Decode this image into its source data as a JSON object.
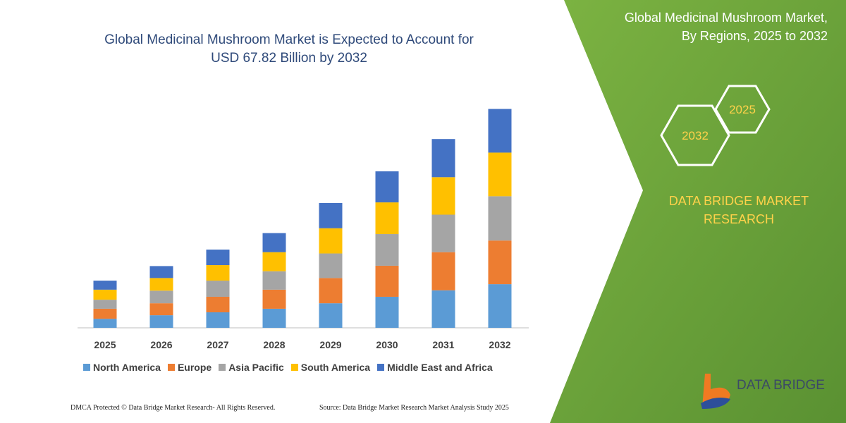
{
  "chart_data": {
    "type": "bar",
    "stacked": true,
    "title": "Global Medicinal Mushroom Market is Expected to Account for\nUSD 67.82 Billion by 2032",
    "categories": [
      "2025",
      "2026",
      "2027",
      "2028",
      "2029",
      "2030",
      "2031",
      "2032"
    ],
    "series": [
      {
        "name": "North America",
        "color": "#5b9bd5",
        "values": [
          2.8,
          3.9,
          4.8,
          5.9,
          7.6,
          9.6,
          11.6,
          13.5
        ]
      },
      {
        "name": "Europe",
        "color": "#ed7d31",
        "values": [
          3.1,
          3.7,
          4.8,
          5.9,
          7.8,
          9.6,
          11.8,
          13.5
        ]
      },
      {
        "name": "Asia Pacific",
        "color": "#a5a5a5",
        "values": [
          2.8,
          3.9,
          5.0,
          5.7,
          7.6,
          9.8,
          11.6,
          13.7
        ]
      },
      {
        "name": "South America",
        "color": "#ffc000",
        "values": [
          3.1,
          3.9,
          4.8,
          5.9,
          7.8,
          9.8,
          11.6,
          13.5
        ]
      },
      {
        "name": "Middle East and Africa",
        "color": "#4472c4",
        "values": [
          2.8,
          3.7,
          4.8,
          5.9,
          7.8,
          9.6,
          11.8,
          13.5
        ]
      }
    ],
    "ylim": [
      0,
      70
    ]
  },
  "panel": {
    "title": "Global Medicinal Mushroom Market,\nBy Regions, 2025 to 2032",
    "hex_start": "2025",
    "hex_end": "2032",
    "brand": "DATA BRIDGE MARKET\nRESEARCH",
    "logo_text": "DATA BRIDGE"
  },
  "footer": {
    "left": "DMCA Protected © Data Bridge Market Research-  All Rights Reserved.",
    "right": "Source: Data Bridge Market Research  Market Analysis Study 2025"
  }
}
